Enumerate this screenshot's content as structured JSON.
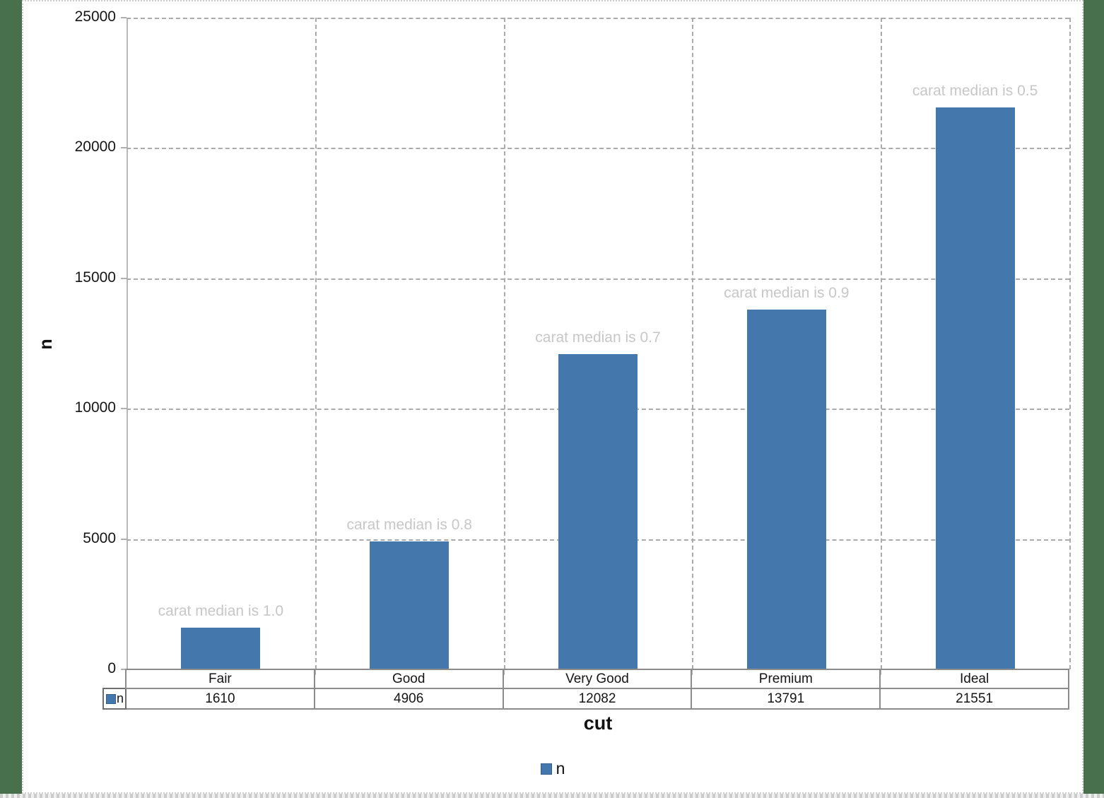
{
  "page": {
    "background_color": "#48704D",
    "canvas_color": "#FFFFFF"
  },
  "chart_data": {
    "type": "bar",
    "title": "",
    "categories": [
      "Fair",
      "Good",
      "Very Good",
      "Premium",
      "Ideal"
    ],
    "series": [
      {
        "name": "n",
        "values": [
          1610,
          4906,
          12082,
          13791,
          21551
        ]
      }
    ],
    "annotations": [
      "carat median is 1.0",
      "carat median is 0.8",
      "carat median is 0.7",
      "carat median is 0.9",
      "carat median is 0.5"
    ],
    "xlabel": "cut",
    "ylabel": "n",
    "ylim": [
      0,
      25000
    ],
    "yticks": [
      0,
      5000,
      10000,
      15000,
      20000,
      25000
    ],
    "grid": true,
    "legend_position": "bottom",
    "bar_color": "#4477AB",
    "annotation_color": "#C7C7C7",
    "data_table": {
      "row_header": "n",
      "values": [
        "1610",
        "4906",
        "12082",
        "13791",
        "21551"
      ]
    }
  }
}
